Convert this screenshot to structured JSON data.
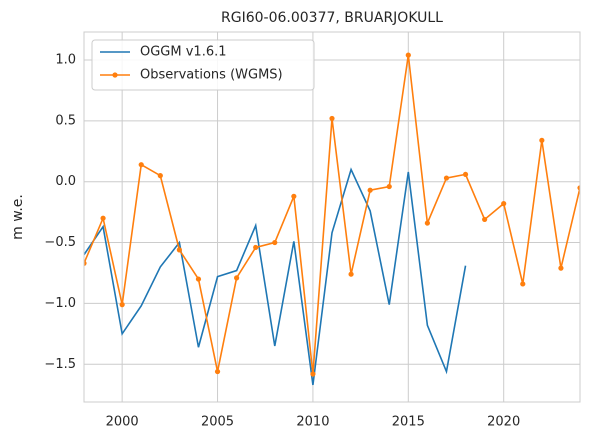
{
  "chart_data": {
    "type": "line",
    "title": "RGI60-06.00377, BRUARJOKULL",
    "y_label": "m w.e.",
    "x": [
      1998,
      1999,
      2000,
      2001,
      2002,
      2003,
      2004,
      2005,
      2006,
      2007,
      2008,
      2009,
      2010,
      2011,
      2012,
      2013,
      2014,
      2015,
      2016,
      2017,
      2018,
      2019,
      2020,
      2021,
      2022,
      2023,
      2024
    ],
    "series": [
      {
        "name": "OGGM v1.6.1",
        "color": "#1f77b4",
        "marker": false,
        "values": [
          -0.6,
          -0.37,
          -1.25,
          -1.02,
          -0.7,
          -0.5,
          -1.36,
          -0.78,
          -0.73,
          -0.36,
          -1.35,
          -0.49,
          -1.67,
          -0.42,
          0.1,
          -0.24,
          -1.01,
          0.08,
          -1.18,
          -1.56,
          -0.69,
          null,
          null,
          null,
          null,
          null,
          null
        ]
      },
      {
        "name": "Observations (WGMS)",
        "color": "#ff7f0e",
        "marker": true,
        "values": [
          -0.67,
          -0.3,
          -1.01,
          0.14,
          0.05,
          -0.56,
          -0.8,
          -1.56,
          -0.79,
          -0.54,
          -0.5,
          -0.12,
          -1.58,
          0.52,
          -0.76,
          -0.07,
          -0.04,
          1.04,
          -0.34,
          0.03,
          0.06,
          -0.31,
          -0.18,
          -0.84,
          0.34,
          -0.71,
          -0.05
        ]
      }
    ],
    "xlim": [
      1998,
      2024
    ],
    "ylim": [
      -1.81,
      1.23
    ],
    "xticks": [
      2000,
      2005,
      2010,
      2015,
      2020
    ],
    "yticks": [
      {
        "value": -1.5,
        "label": "−1.5"
      },
      {
        "value": -1.0,
        "label": "−1.0"
      },
      {
        "value": -0.5,
        "label": "−0.5"
      },
      {
        "value": 0.0,
        "label": "0.0"
      },
      {
        "value": 0.5,
        "label": "0.5"
      },
      {
        "value": 1.0,
        "label": "1.0"
      }
    ],
    "grid": true,
    "legend": "upper-left"
  }
}
